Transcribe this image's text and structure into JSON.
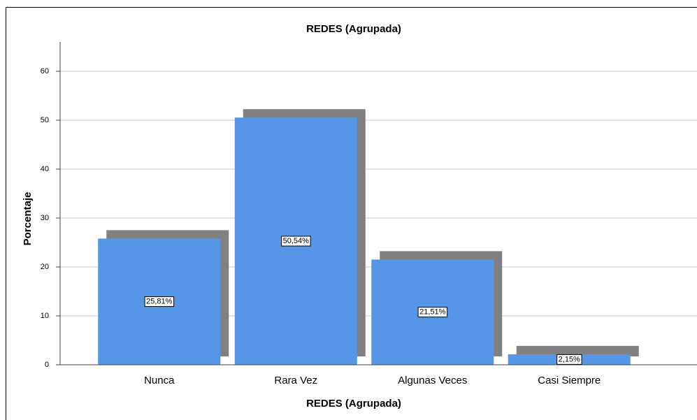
{
  "chart_data": {
    "type": "bar",
    "title": "REDES (Agrupada)",
    "x_label": "REDES (Agrupada)",
    "y_label": "Porcentaje",
    "categories": [
      "Nunca",
      "Rara Vez",
      "Algunas Veces",
      "Casi Siempre"
    ],
    "values": [
      25.81,
      50.54,
      21.51,
      2.15
    ],
    "value_labels": [
      "25,81%",
      "50,54%",
      "21,51%",
      "2,15%"
    ],
    "color": "#5596e6",
    "shadow_color": "#808080",
    "ylim": [
      0,
      66
    ],
    "yticks": [
      0,
      10,
      20,
      30,
      40,
      50,
      60
    ],
    "grid": true
  }
}
